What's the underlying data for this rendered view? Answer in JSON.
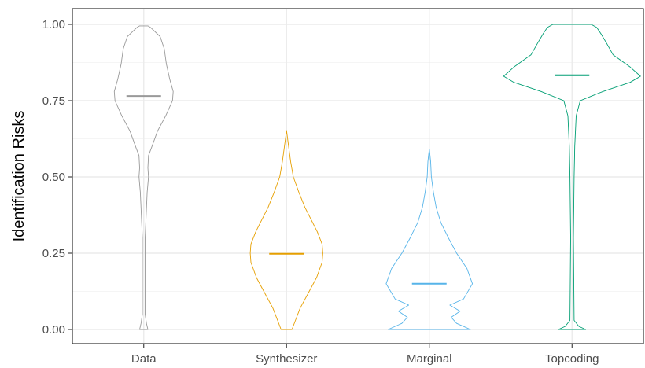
{
  "chart_data": {
    "type": "violin",
    "title": "",
    "xlabel": "",
    "ylabel": "Identification Risks",
    "ylim": [
      0.0,
      1.0
    ],
    "y_ticks": [
      "0.00",
      "0.25",
      "0.50",
      "0.75",
      "1.00"
    ],
    "y_tick_values": [
      0.0,
      0.25,
      0.5,
      0.75,
      1.0
    ],
    "categories": [
      "Data",
      "Synthesizer",
      "Marginal",
      "Topcoding"
    ],
    "grid": true,
    "legend": "none",
    "series": [
      {
        "category": "Data",
        "color": "#999999",
        "median": 0.765,
        "min": 0.0,
        "max": 0.995,
        "density": [
          [
            0.0,
            0.06
          ],
          [
            0.02,
            0.04
          ],
          [
            0.05,
            0.02
          ],
          [
            0.15,
            0.02
          ],
          [
            0.3,
            0.02
          ],
          [
            0.45,
            0.05
          ],
          [
            0.5,
            0.07
          ],
          [
            0.53,
            0.06
          ],
          [
            0.57,
            0.07
          ],
          [
            0.6,
            0.12
          ],
          [
            0.65,
            0.2
          ],
          [
            0.7,
            0.32
          ],
          [
            0.75,
            0.42
          ],
          [
            0.78,
            0.43
          ],
          [
            0.82,
            0.38
          ],
          [
            0.87,
            0.33
          ],
          [
            0.92,
            0.3
          ],
          [
            0.96,
            0.24
          ],
          [
            0.99,
            0.1
          ],
          [
            0.995,
            0.06
          ]
        ]
      },
      {
        "category": "Synthesizer",
        "color": "#E69F00",
        "median": 0.248,
        "min": 0.0,
        "max": 0.652,
        "density": [
          [
            0.0,
            0.08
          ],
          [
            0.03,
            0.13
          ],
          [
            0.07,
            0.2
          ],
          [
            0.12,
            0.32
          ],
          [
            0.17,
            0.44
          ],
          [
            0.22,
            0.52
          ],
          [
            0.25,
            0.53
          ],
          [
            0.28,
            0.52
          ],
          [
            0.32,
            0.45
          ],
          [
            0.36,
            0.36
          ],
          [
            0.4,
            0.27
          ],
          [
            0.45,
            0.18
          ],
          [
            0.5,
            0.1
          ],
          [
            0.55,
            0.06
          ],
          [
            0.6,
            0.03
          ],
          [
            0.652,
            0.0
          ]
        ]
      },
      {
        "category": "Marginal",
        "color": "#56B4E9",
        "median": 0.15,
        "min": 0.0,
        "max": 0.592,
        "density": [
          [
            0.0,
            0.6
          ],
          [
            0.02,
            0.4
          ],
          [
            0.04,
            0.32
          ],
          [
            0.06,
            0.45
          ],
          [
            0.08,
            0.3
          ],
          [
            0.1,
            0.5
          ],
          [
            0.15,
            0.63
          ],
          [
            0.2,
            0.55
          ],
          [
            0.25,
            0.4
          ],
          [
            0.3,
            0.28
          ],
          [
            0.35,
            0.17
          ],
          [
            0.4,
            0.1
          ],
          [
            0.45,
            0.06
          ],
          [
            0.5,
            0.03
          ],
          [
            0.55,
            0.02
          ],
          [
            0.592,
            0.0
          ]
        ]
      },
      {
        "category": "Topcoding",
        "color": "#009E73",
        "median": 0.833,
        "min": 0.0,
        "max": 1.0,
        "density": [
          [
            0.0,
            0.2
          ],
          [
            0.01,
            0.1
          ],
          [
            0.03,
            0.03
          ],
          [
            0.3,
            0.02
          ],
          [
            0.5,
            0.03
          ],
          [
            0.6,
            0.04
          ],
          [
            0.7,
            0.06
          ],
          [
            0.75,
            0.12
          ],
          [
            0.78,
            0.45
          ],
          [
            0.81,
            0.85
          ],
          [
            0.83,
            1.0
          ],
          [
            0.86,
            0.85
          ],
          [
            0.9,
            0.6
          ],
          [
            0.94,
            0.5
          ],
          [
            0.97,
            0.42
          ],
          [
            0.99,
            0.36
          ],
          [
            1.0,
            0.28
          ]
        ]
      }
    ]
  }
}
